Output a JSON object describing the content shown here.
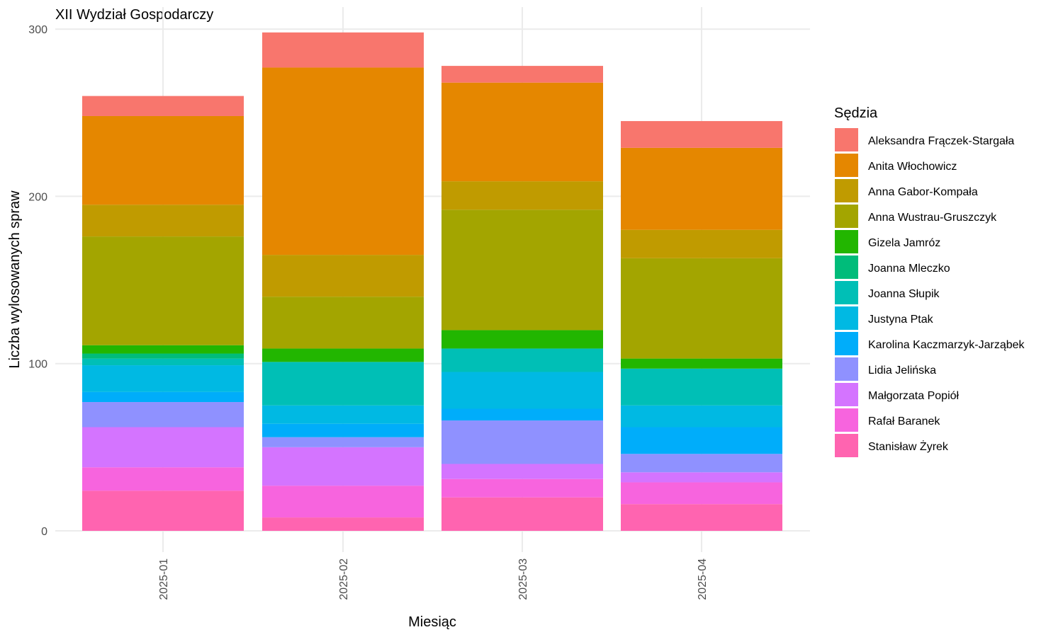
{
  "chart_data": {
    "type": "bar",
    "stacked": true,
    "title": "XII Wydział Gospodarczy",
    "xlabel": "Miesiąc",
    "ylabel": "Liczba wylosowanych spraw",
    "ylim": [
      0,
      300
    ],
    "yticks": [
      "0",
      "100",
      "200",
      "300"
    ],
    "grid": true,
    "legend_title": "Sędzia",
    "legend_position": "right",
    "categories": [
      "2025-01",
      "2025-02",
      "2025-03",
      "2025-04"
    ],
    "series": [
      {
        "name": "Aleksandra Frączek-Stargała",
        "color": "#F8766D",
        "values": [
          12,
          21,
          10,
          16
        ]
      },
      {
        "name": "Anita Włochowicz",
        "color": "#E58700",
        "values": [
          53,
          112,
          59,
          49
        ]
      },
      {
        "name": "Anna Gabor-Kompała",
        "color": "#C09B00",
        "values": [
          19,
          25,
          17,
          17
        ]
      },
      {
        "name": "Anna Wustrau-Gruszczyk",
        "color": "#A3A500",
        "values": [
          65,
          31,
          72,
          60
        ]
      },
      {
        "name": "Gizela Jamróz",
        "color": "#22B600",
        "values": [
          5,
          8,
          11,
          6
        ]
      },
      {
        "name": "Joanna Mleczko",
        "color": "#00BC7A",
        "values": [
          3,
          0,
          0,
          0
        ]
      },
      {
        "name": "Joanna Słupik",
        "color": "#00BFB6",
        "values": [
          4,
          26,
          14,
          22
        ]
      },
      {
        "name": "Justyna Ptak",
        "color": "#00B9E3",
        "values": [
          16,
          11,
          22,
          13
        ]
      },
      {
        "name": "Karolina Kaczmarzyk-Jarząbek",
        "color": "#00ADFA",
        "values": [
          6,
          8,
          7,
          16
        ]
      },
      {
        "name": "Lidia Jelińska",
        "color": "#8F91FF",
        "values": [
          15,
          6,
          26,
          11
        ]
      },
      {
        "name": "Małgorzata Popiół",
        "color": "#D474FF",
        "values": [
          24,
          23,
          9,
          6
        ]
      },
      {
        "name": "Rafał Baranek",
        "color": "#F764DE",
        "values": [
          14,
          19,
          11,
          13
        ]
      },
      {
        "name": "Stanisław Żyrek",
        "color": "#FF64B0",
        "values": [
          24,
          8,
          20,
          16
        ]
      }
    ]
  }
}
